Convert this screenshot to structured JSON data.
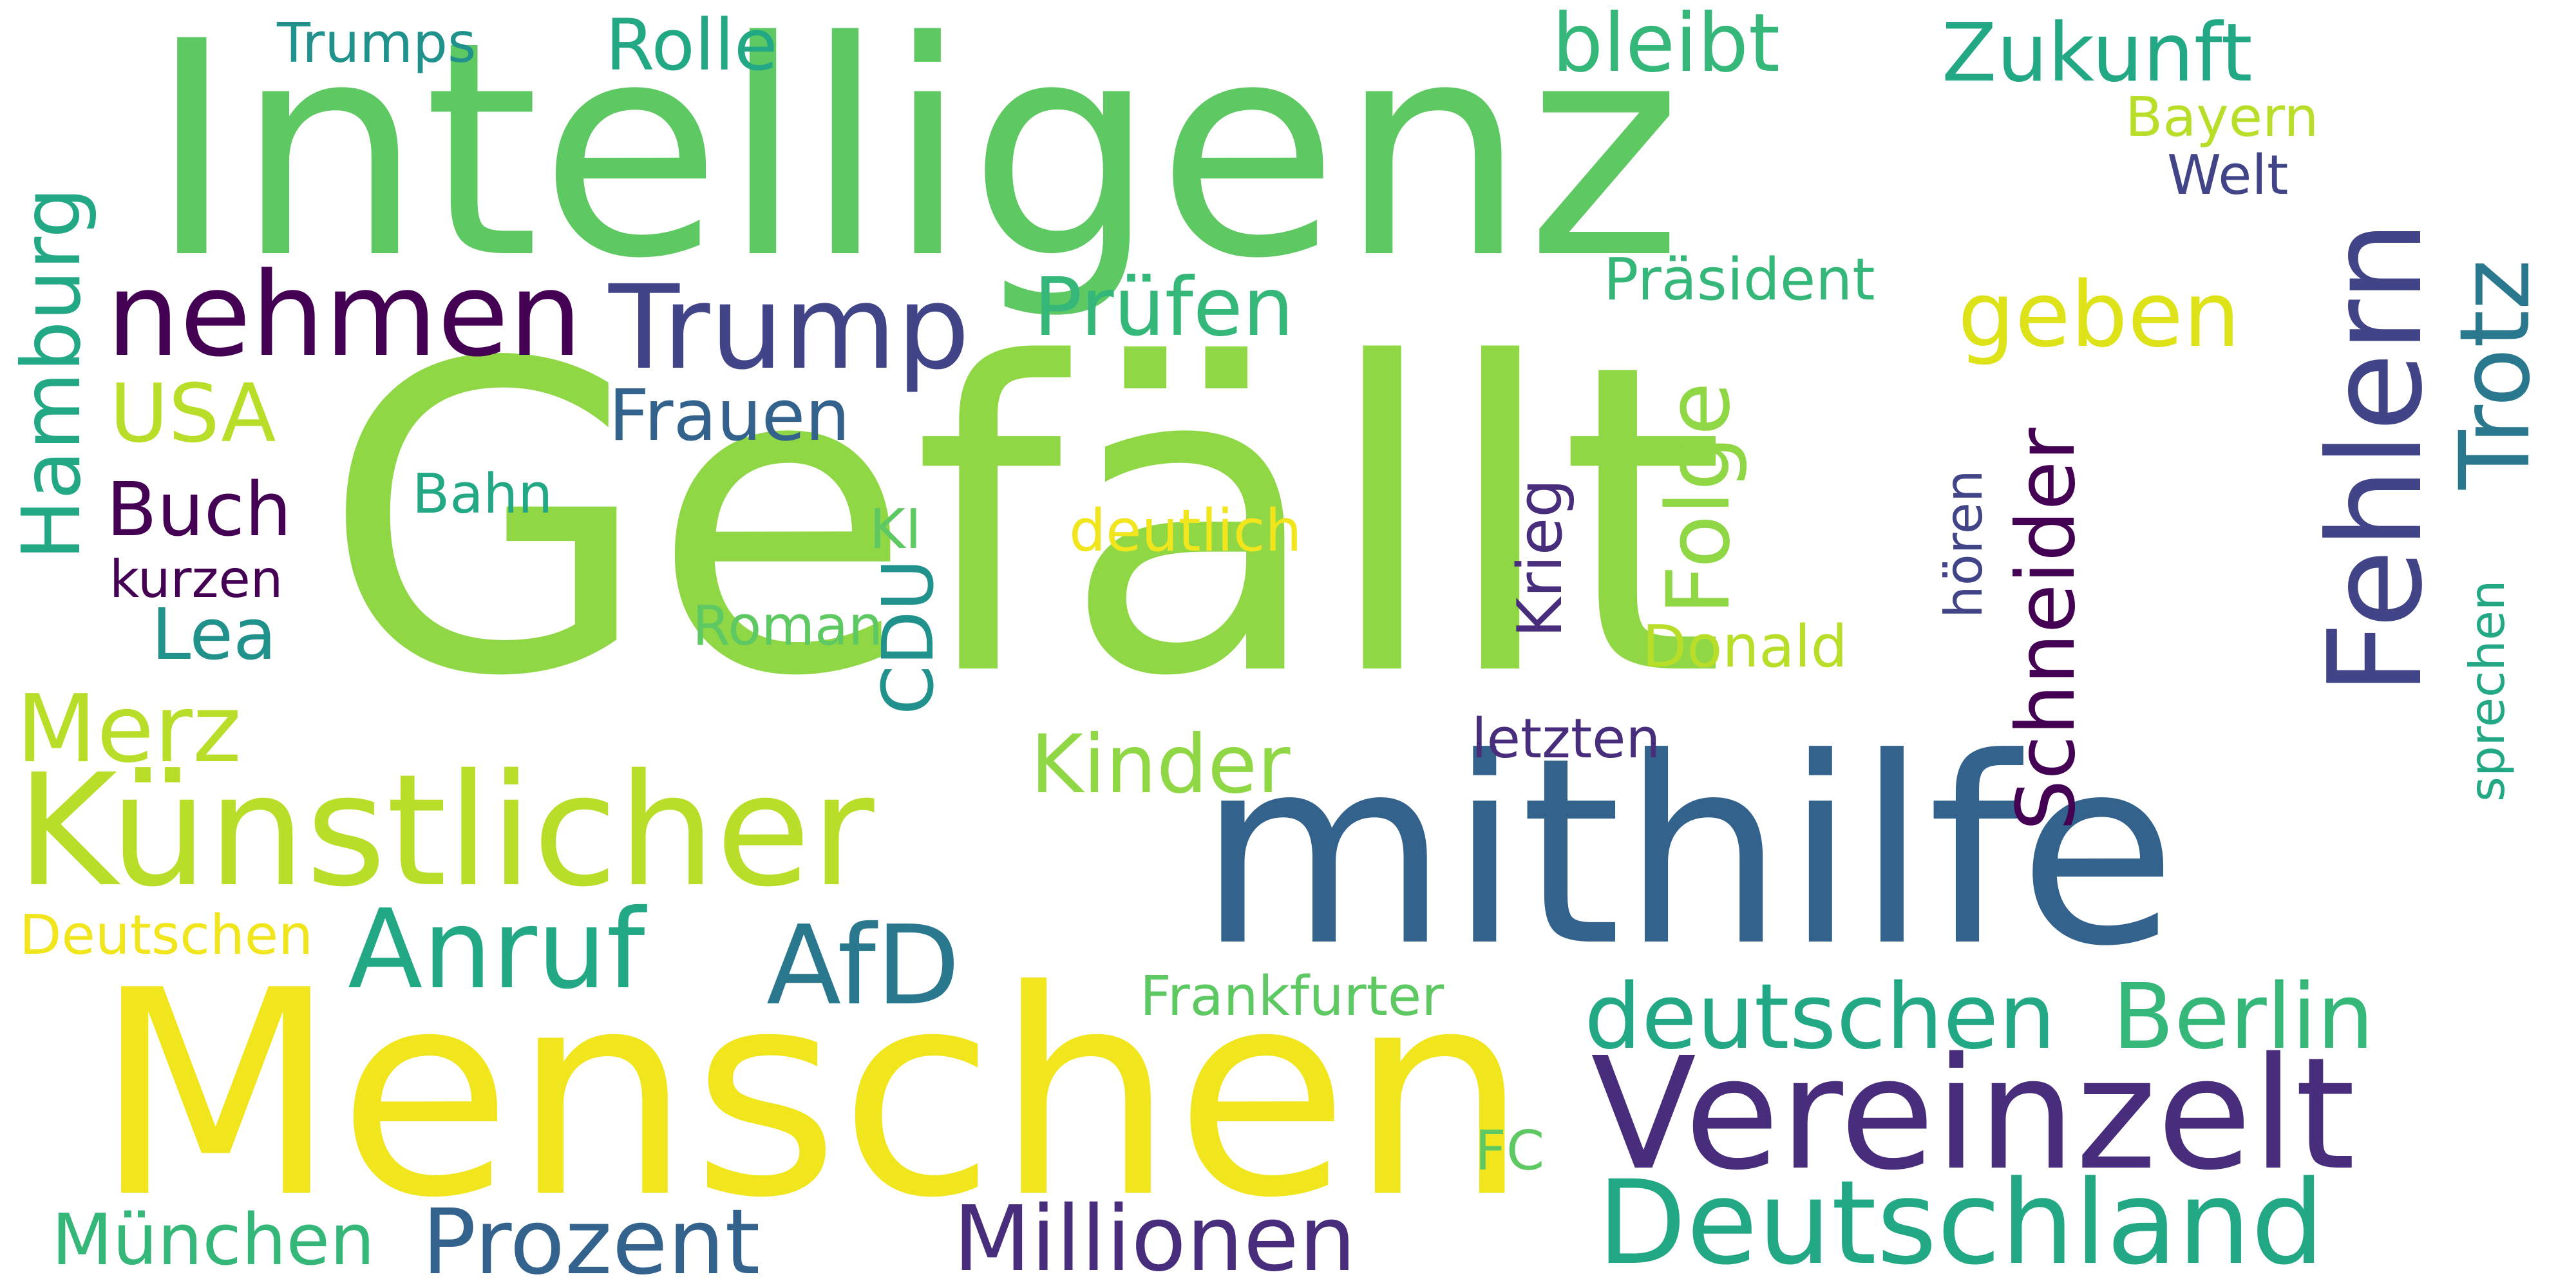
{
  "colors": {
    "background": "#ffffff",
    "yellow": "#f1e51d",
    "lime": "#b8de29",
    "green": "#8fd744",
    "lightgreen": "#5ec962",
    "seagreen": "#35b779",
    "teal": "#22a884",
    "tealblue": "#21918c",
    "blue": "#2a788e",
    "steelblue": "#33638d",
    "indigo": "#414487",
    "purple": "#472d7b",
    "deeppurple": "#440154",
    "gold": "#dde318"
  },
  "words": [
    {
      "text": "Gefällt",
      "color": "#8fd744"
    },
    {
      "text": "Intelligenz",
      "color": "#5ec962"
    },
    {
      "text": "Menschen",
      "color": "#f1e51d"
    },
    {
      "text": "mithilfe",
      "color": "#33638d"
    },
    {
      "text": "Künstlicher",
      "color": "#b8de29"
    },
    {
      "text": "Vereinzelt",
      "color": "#472d7b"
    },
    {
      "text": "Deutschland",
      "color": "#22a884"
    },
    {
      "text": "Fehlern",
      "color": "#414487"
    },
    {
      "text": "nehmen",
      "color": "#440154"
    },
    {
      "text": "Trump",
      "color": "#414487"
    },
    {
      "text": "Anruf",
      "color": "#22a884"
    },
    {
      "text": "AfD",
      "color": "#2a788e"
    },
    {
      "text": "Millionen",
      "color": "#472d7b"
    },
    {
      "text": "Prozent",
      "color": "#33638d"
    },
    {
      "text": "deutschen",
      "color": "#22a884"
    },
    {
      "text": "Berlin",
      "color": "#35b779"
    },
    {
      "text": "Trotz",
      "color": "#2a788e"
    },
    {
      "text": "Merz",
      "color": "#b8de29"
    },
    {
      "text": "geben",
      "color": "#dde318"
    },
    {
      "text": "Prüfen",
      "color": "#35b779"
    },
    {
      "text": "Kinder",
      "color": "#8fd744"
    },
    {
      "text": "Schneider",
      "color": "#440154"
    },
    {
      "text": "Folge",
      "color": "#8fd744"
    },
    {
      "text": "Hamburg",
      "color": "#22a884"
    },
    {
      "text": "bleibt",
      "color": "#35b779"
    },
    {
      "text": "Zukunft",
      "color": "#22a884"
    },
    {
      "text": "Rolle",
      "color": "#22a884"
    },
    {
      "text": "USA",
      "color": "#b8de29"
    },
    {
      "text": "Frauen",
      "color": "#33638d"
    },
    {
      "text": "Buch",
      "color": "#440154"
    },
    {
      "text": "Lea",
      "color": "#21918c"
    },
    {
      "text": "Krieg",
      "color": "#472d7b"
    },
    {
      "text": "CDU",
      "color": "#21918c"
    },
    {
      "text": "München",
      "color": "#35b779"
    },
    {
      "text": "Trumps",
      "color": "#21918c"
    },
    {
      "text": "Bayern",
      "color": "#b8de29"
    },
    {
      "text": "Welt",
      "color": "#414487"
    },
    {
      "text": "Präsident",
      "color": "#35b779"
    },
    {
      "text": "Bahn",
      "color": "#22a884"
    },
    {
      "text": "KI",
      "color": "#5ec962"
    },
    {
      "text": "deutlich",
      "color": "#f1e51d"
    },
    {
      "text": "kurzen",
      "color": "#440154"
    },
    {
      "text": "Roman",
      "color": "#5ec962"
    },
    {
      "text": "Donald",
      "color": "#b8de29"
    },
    {
      "text": "hören",
      "color": "#414487"
    },
    {
      "text": "sprechen",
      "color": "#22a884"
    },
    {
      "text": "letzten",
      "color": "#472d7b"
    },
    {
      "text": "Deutschen",
      "color": "#f1e51d"
    },
    {
      "text": "Frankfurter",
      "color": "#5ec962"
    },
    {
      "text": "FC",
      "color": "#5ec962"
    }
  ]
}
